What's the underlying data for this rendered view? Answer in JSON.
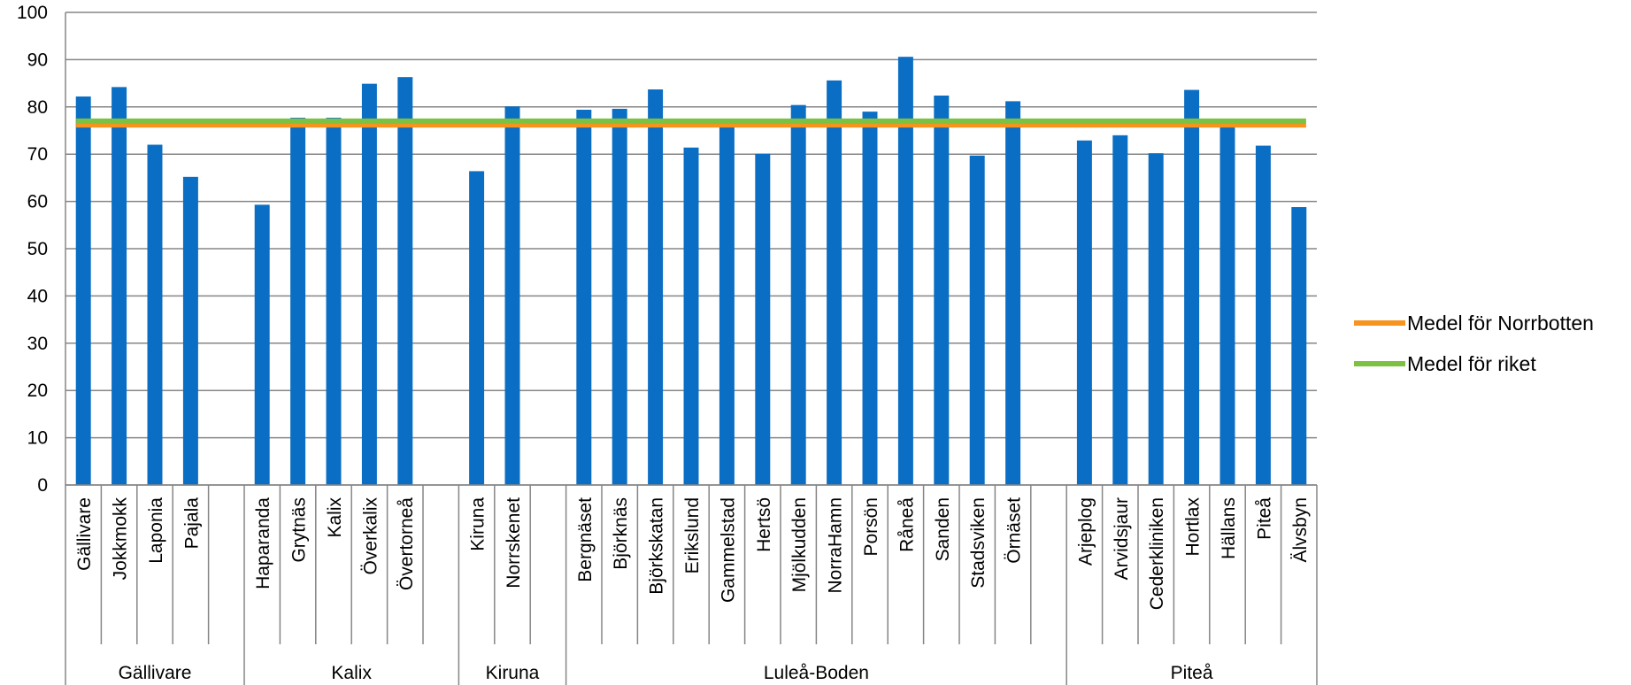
{
  "chart_data": {
    "type": "bar",
    "ylim": [
      0,
      100
    ],
    "yticks": [
      0,
      10,
      20,
      30,
      40,
      50,
      60,
      70,
      80,
      90,
      100
    ],
    "grid": true,
    "legend_position": "right",
    "colors": {
      "bars": "#0A6EC4",
      "norrbotten": "#F7941D",
      "riket": "#7DC142",
      "grid": "#868686"
    },
    "groups": [
      {
        "name": "Gällivare",
        "categories": [
          "Gällivare",
          "Jokkmokk",
          "Laponia",
          "Pajala"
        ],
        "values": [
          82.2,
          84.2,
          72.0,
          65.2
        ]
      },
      {
        "name": "Kalix",
        "categories": [
          "Haparanda",
          "Grytnäs",
          "Kalix",
          "Överkalix",
          "Övertorneå"
        ],
        "values": [
          59.3,
          77.7,
          77.7,
          84.9,
          86.3
        ]
      },
      {
        "name": "Kiruna",
        "categories": [
          "Kiruna",
          "Norrskenet"
        ],
        "values": [
          66.4,
          80.1
        ]
      },
      {
        "name": "Luleå-Boden",
        "categories": [
          "Bergnäset",
          "Björknäs",
          "Björkskatan",
          "Erikslund",
          "Gammelstad",
          "Hertsö",
          "Mjölkudden",
          "NorraHamn",
          "Porsön",
          "Råneå",
          "Sanden",
          "Stadsviken",
          "Örnäset"
        ],
        "values": [
          79.4,
          79.6,
          83.7,
          71.4,
          76.1,
          70.1,
          80.4,
          85.6,
          79.0,
          90.6,
          82.4,
          69.7,
          81.2
        ]
      },
      {
        "name": "Piteå",
        "categories": [
          "Arjeplog",
          "Arvidsjaur",
          "Cederkliniken",
          "Hortlax",
          "Hällans",
          "Piteå",
          "Älvsbyn"
        ],
        "values": [
          72.9,
          74.0,
          70.2,
          83.6,
          76.7,
          71.8,
          58.8
        ]
      }
    ],
    "reference_lines": [
      {
        "name": "Medel för Norrbotten",
        "value": 76.2,
        "color": "#F7941D"
      },
      {
        "name": "Medel för riket",
        "value": 77.0,
        "color": "#7DC142"
      }
    ]
  }
}
